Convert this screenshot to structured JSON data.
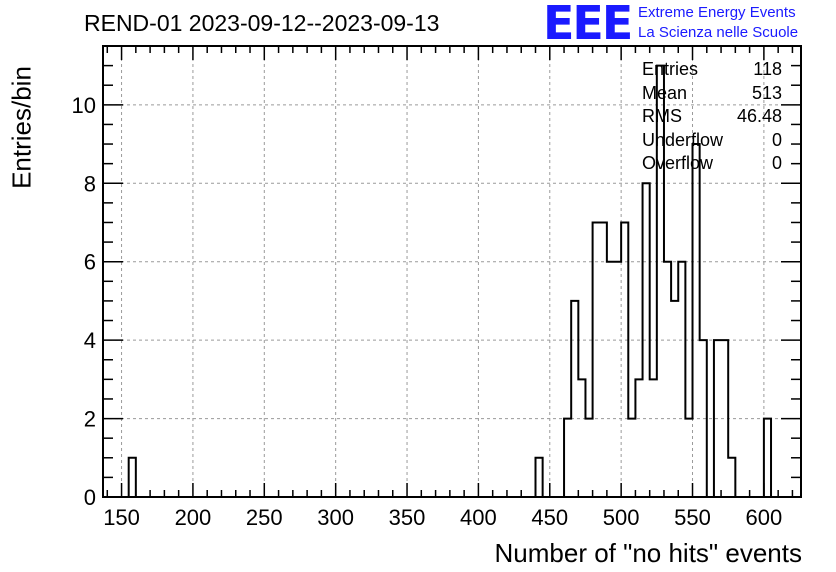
{
  "title": "REND-01 2023-09-12--2023-09-13",
  "logo": {
    "mark": "EEE",
    "line1": "Extreme Energy Events",
    "line2": "La Scienza nelle Scuole",
    "color": "#1a1aff"
  },
  "stats": [
    {
      "label": "Entries",
      "value": "118"
    },
    {
      "label": "Mean",
      "value": "513"
    },
    {
      "label": "RMS",
      "value": "46.48"
    },
    {
      "label": "Underflow",
      "value": "0"
    },
    {
      "label": "Overflow",
      "value": "0"
    }
  ],
  "chart_data": {
    "type": "bar",
    "title": "REND-01 2023-09-12--2023-09-13",
    "xlabel": "Number of \"no hits\" events",
    "ylabel": "Entries/bin",
    "xlim": [
      137,
      626
    ],
    "ylim": [
      0,
      11.5
    ],
    "grid": true,
    "bin_width": 5,
    "x_ticks": [
      150,
      200,
      250,
      300,
      350,
      400,
      450,
      500,
      550,
      600
    ],
    "y_ticks": [
      0,
      2,
      4,
      6,
      8,
      10
    ],
    "bins": [
      {
        "x": 155,
        "y": 1
      },
      {
        "x": 440,
        "y": 1
      },
      {
        "x": 460,
        "y": 2
      },
      {
        "x": 465,
        "y": 5
      },
      {
        "x": 470,
        "y": 3
      },
      {
        "x": 475,
        "y": 2
      },
      {
        "x": 480,
        "y": 7
      },
      {
        "x": 485,
        "y": 7
      },
      {
        "x": 490,
        "y": 6
      },
      {
        "x": 495,
        "y": 6
      },
      {
        "x": 500,
        "y": 7
      },
      {
        "x": 505,
        "y": 2
      },
      {
        "x": 510,
        "y": 3
      },
      {
        "x": 515,
        "y": 8
      },
      {
        "x": 520,
        "y": 3
      },
      {
        "x": 525,
        "y": 11
      },
      {
        "x": 530,
        "y": 6
      },
      {
        "x": 535,
        "y": 5
      },
      {
        "x": 540,
        "y": 6
      },
      {
        "x": 545,
        "y": 2
      },
      {
        "x": 550,
        "y": 9
      },
      {
        "x": 555,
        "y": 4
      },
      {
        "x": 565,
        "y": 4
      },
      {
        "x": 570,
        "y": 4
      },
      {
        "x": 575,
        "y": 1
      },
      {
        "x": 600,
        "y": 2
      }
    ],
    "line_color": "#000000",
    "grid_color": "#9a9a9a"
  }
}
